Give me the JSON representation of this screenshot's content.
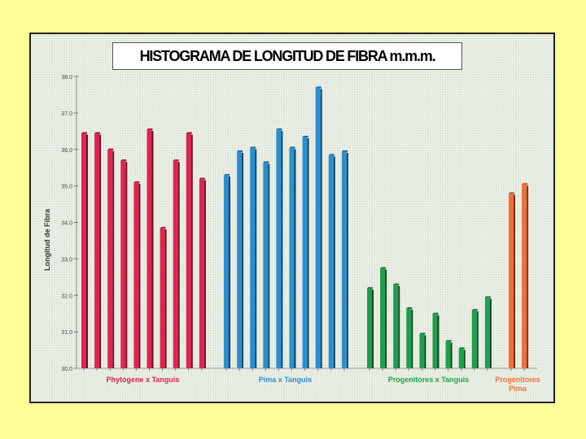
{
  "chart_data": {
    "type": "bar",
    "title": "HISTOGRAMA DE LONGITUD DE FIBRA m.m.m.",
    "ylabel": "Longitud de Fibra",
    "xlabel": "",
    "ylim": [
      30.0,
      38.0
    ],
    "yticks": [
      "30.0",
      "31.0",
      "32.0",
      "33.0",
      "34.0",
      "35.0",
      "36.0",
      "37.0",
      "38.0"
    ],
    "grid": false,
    "groups": [
      {
        "label": "Phytogene x Tanguis",
        "color": "#e0244f",
        "values": [
          36.45,
          36.45,
          36.0,
          35.7,
          35.1,
          36.55,
          33.85,
          35.7,
          36.45,
          35.2
        ]
      },
      {
        "label": "Pima x Tanguis",
        "color": "#2a8fd1",
        "values": [
          35.3,
          35.95,
          36.05,
          35.65,
          36.55,
          36.05,
          36.35,
          37.7,
          35.85,
          35.95
        ]
      },
      {
        "label": "Progenitores x Tanguis",
        "color": "#1f9e4d",
        "values": [
          32.2,
          32.75,
          32.3,
          31.65,
          30.95,
          31.5,
          30.75,
          30.55,
          31.6,
          31.95
        ]
      },
      {
        "label": "Progenitores Pima",
        "color": "#f0703a",
        "values": [
          34.8,
          35.05
        ]
      }
    ]
  }
}
